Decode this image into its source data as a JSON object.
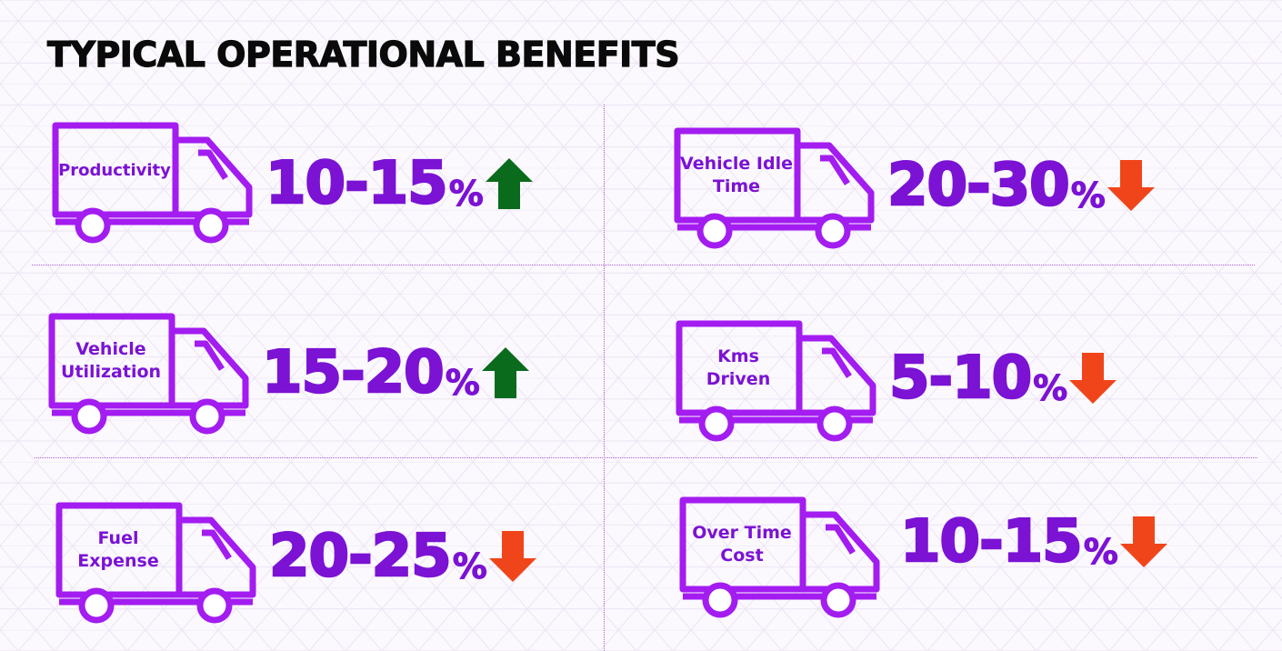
{
  "title": "TYPICAL OPERATIONAL BENEFITS",
  "colors": {
    "accent_purple": "#7b12d4",
    "truck_purple": "#a31cf0",
    "up_green": "#0b6b1d",
    "down_orange": "#f0451a",
    "divider": "#b45ad6"
  },
  "benefits": [
    {
      "label": "Productivity",
      "value": "10-15",
      "unit": "%",
      "direction": "up",
      "icon": "arrow-up-icon"
    },
    {
      "label": "Vehicle Idle Time",
      "value": "20-30",
      "unit": "%",
      "direction": "down",
      "icon": "arrow-down-icon"
    },
    {
      "label": "Vehicle Utilization",
      "value": "15-20",
      "unit": "%",
      "direction": "up",
      "icon": "arrow-up-icon"
    },
    {
      "label": "Kms Driven",
      "value": "5-10",
      "unit": "%",
      "direction": "down",
      "icon": "arrow-down-icon"
    },
    {
      "label": "Fuel Expense",
      "value": "20-25",
      "unit": "%",
      "direction": "down",
      "icon": "arrow-down-icon"
    },
    {
      "label": "Over Time Cost",
      "value": "10-15",
      "unit": "%",
      "direction": "down",
      "icon": "arrow-down-icon"
    }
  ]
}
